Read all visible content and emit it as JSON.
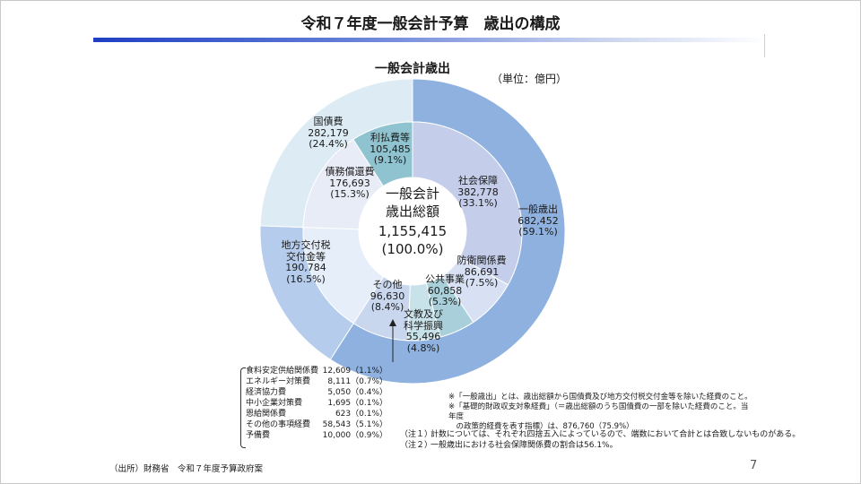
{
  "title": "令和７年度一般会計予算　歳出の構成",
  "chart_title": "一般会計歳出",
  "unit": "（単位：億円）",
  "page_number": "7",
  "source": "（出所）財務省　令和７年度予算政府案",
  "colors": {
    "outer_general": "#8eb1e0",
    "outer_debt": "#dcebf4",
    "outer_local": "#b5ccec",
    "inner_social": "#c4cde9",
    "inner_defense": "#d7e1f3",
    "inner_public": "#a9d0da",
    "inner_edu": "#c8e2ea",
    "inner_other": "#c9d7ee",
    "inner_local": "#e6eef9",
    "inner_redemption": "#e8ecf7",
    "inner_interest": "#8ec3cf",
    "title_bar": "#1f3fc4"
  },
  "chart_data": {
    "type": "pie",
    "title": "一般会計歳出",
    "total": {
      "label_line1": "一般会計",
      "label_line2": "歳出総額",
      "value": "1,155,415",
      "pct": "(100.0%)"
    },
    "outer_ring": [
      {
        "name": "一般歳出",
        "value": 682452,
        "value_text": "682,452",
        "pct": "(59.1%)",
        "color": "#8eb1e0"
      },
      {
        "name": "地方交付税交付金等",
        "value": 190784,
        "value_text": "190,784",
        "pct": "(16.5%)",
        "color": "#b5ccec"
      },
      {
        "name": "国債費",
        "value": 282179,
        "value_text": "282,179",
        "pct": "(24.4%)",
        "color": "#dcebf4"
      }
    ],
    "inner_ring": [
      {
        "name": "社会保障",
        "value": 382778,
        "value_text": "382,778",
        "pct": "(33.1%)",
        "color": "#c4cde9"
      },
      {
        "name": "防衛関係費",
        "value": 86691,
        "value_text": "86,691",
        "pct": "(7.5%)",
        "color": "#d7e1f3"
      },
      {
        "name": "公共事業",
        "value": 60858,
        "value_text": "60,858",
        "pct": "(5.3%)",
        "color": "#a9d0da"
      },
      {
        "name": "文教及び科学振興",
        "value": 55496,
        "value_text": "55,496",
        "pct": "(4.8%)",
        "color": "#c8e2ea"
      },
      {
        "name": "その他",
        "value": 96630,
        "value_text": "96,630",
        "pct": "(8.4%)",
        "color": "#c9d7ee"
      },
      {
        "name": "地方交付税交付金等",
        "value": 190784,
        "value_text": "190,784",
        "pct": "(16.5%)",
        "color": "#e6eef9"
      },
      {
        "name": "債務償還費",
        "value": 176693,
        "value_text": "176,693",
        "pct": "(15.3%)",
        "color": "#e8ecf7"
      },
      {
        "name": "利払費等",
        "value": 105485,
        "value_text": "105,485",
        "pct": "(9.1%)",
        "color": "#8ec3cf"
      }
    ],
    "labels": {
      "general": {
        "l1": "一般歳出",
        "v": "682,452",
        "p": "(59.1%)"
      },
      "local": {
        "l1": "地方交付税",
        "l2": "交付金等",
        "v": "190,784",
        "p": "(16.5%)"
      },
      "debt": {
        "l1": "国債費",
        "v": "282,179",
        "p": "(24.4%)"
      },
      "social": {
        "l1": "社会保障",
        "v": "382,778",
        "p": "(33.1%)"
      },
      "defense": {
        "l1": "防衛関係費",
        "v": "86,691",
        "p": "(7.5%)"
      },
      "public": {
        "l1": "公共事業",
        "v": "60,858",
        "p": "(5.3%)"
      },
      "edu": {
        "l1": "文教及び",
        "l2": "科学振興",
        "v": "55,496",
        "p": "(4.8%)"
      },
      "other": {
        "l1": "その他",
        "v": "96,630",
        "p": "(8.4%)"
      },
      "redemption": {
        "l1": "債務償還費",
        "v": "176,693",
        "p": "(15.3%)"
      },
      "interest": {
        "l1": "利払費等",
        "v": "105,485",
        "p": "(9.1%)"
      }
    },
    "other_breakdown": [
      {
        "name": "食料安定供給関係費",
        "value": "12,609（1.1%）"
      },
      {
        "name": "エネルギー対策費",
        "value": "8,111（0.7%）"
      },
      {
        "name": "経済協力費",
        "value": "5,050（0.4%）"
      },
      {
        "name": "中小企業対策費",
        "value": "1,695（0.1%）"
      },
      {
        "name": "恩給関係費",
        "value": "623（0.1%）"
      },
      {
        "name": "その他の事項経費",
        "value": "58,543（5.1%）"
      },
      {
        "name": "予備費",
        "value": "10,000（0.9%）"
      }
    ]
  },
  "notes": [
    "※「一般歳出」とは、歳出総額から国債費及び地方交付税交付金等を除いた経費のこと。",
    "※「基礎的財政収支対象経費」（＝歳出総額のうち国債費の一部を除いた経費のこと。当年度",
    "　の政策的経費を表す指標）は、876,760（75.9%）"
  ],
  "footnotes": [
    {
      "label": "（注１）",
      "text": "計数については、それぞれ四捨五入によっているので、端数において合計とは合致しないものがある。"
    },
    {
      "label": "（注２）",
      "text": "一般歳出における社会保障関係費の割合は56.1%。"
    }
  ]
}
